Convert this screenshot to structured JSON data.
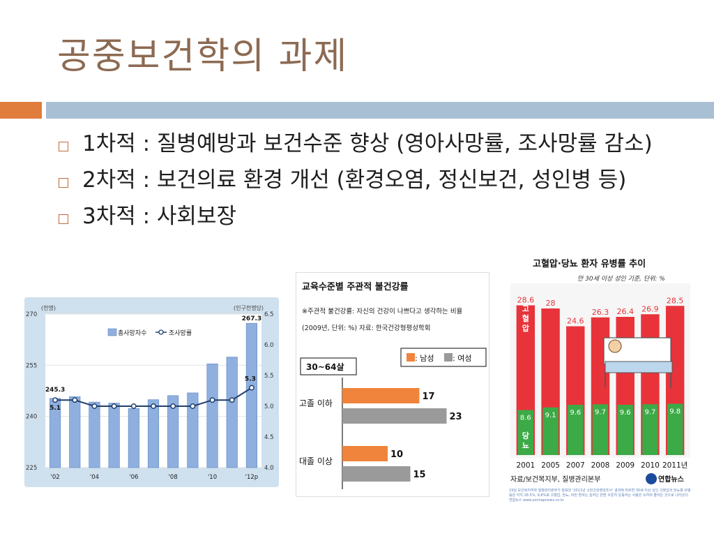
{
  "slide": {
    "title": "공중보건학의 과제",
    "bullets": [
      "1차적 : 질병예방과 보건수준 향상 (영아사망률, 조사망률 감소)",
      "2차적 : 보건의료 환경 개선 (환경오염, 정신보건, 성인병 등)",
      "3차적 : 사회보장"
    ]
  },
  "colors": {
    "title": "#8c6a52",
    "accent_orange": "#e07c3c",
    "accent_blue": "#a9bfd4"
  },
  "chart_data": [
    {
      "type": "bar",
      "left_unit": "(천명)",
      "right_unit": "(인구천명당)",
      "legend": [
        "총사망자수",
        "조사망률"
      ],
      "categories": [
        "'02",
        "'04",
        "'06",
        "'08",
        "'10",
        "'12p"
      ],
      "x": [
        2002,
        2003,
        2004,
        2005,
        2006,
        2007,
        2008,
        2009,
        2010,
        2011,
        2012
      ],
      "series": [
        {
          "name": "총사망자수",
          "values": [
            245.3,
            245.8,
            244.2,
            243.9,
            242.3,
            244.9,
            246.1,
            246.9,
            255.4,
            257.4,
            267.3
          ]
        },
        {
          "name": "조사망률",
          "values": [
            5.1,
            5.1,
            5.0,
            5.0,
            5.0,
            5.0,
            5.0,
            5.0,
            5.1,
            5.1,
            5.3
          ]
        }
      ],
      "ylim_left": [
        225,
        270
      ],
      "yticks_left": [
        "270",
        "255",
        "240",
        "225"
      ],
      "ylim_right": [
        4.0,
        6.5
      ],
      "yticks_right": [
        "6.5",
        "6.0",
        "5.5",
        "5.0",
        "4.5",
        "4.0"
      ],
      "data_labels": [
        "245.3",
        "5.1",
        "267.3",
        "5.3"
      ]
    },
    {
      "type": "bar",
      "title": "교육수준별 주관적 불건강률",
      "note": "※주관적 불건강률: 자신의 건강이 나쁘다고 생각하는 비율",
      "source": "(2009년, 단위: %) 자료: 한국건강형평성학회",
      "age_group": "30~64살",
      "legend": [
        ": 남성",
        ": 여성"
      ],
      "categories": [
        "고졸 이하",
        "대졸 이상"
      ],
      "series": [
        {
          "name": "남성",
          "values": [
            17,
            10
          ],
          "color": "#f0843c"
        },
        {
          "name": "여성",
          "values": [
            23,
            15
          ],
          "color": "#9a9a9a"
        }
      ]
    },
    {
      "type": "bar",
      "title": "고혈압·당뇨 환자 유병률 추이",
      "subtitle": "만 30세 이상 성인 기준, 단위: %",
      "categories": [
        "2001",
        "2005",
        "2007",
        "2008",
        "2009",
        "2010",
        "2011년"
      ],
      "series": [
        {
          "name": "고혈압",
          "values": [
            28.6,
            28.0,
            24.6,
            26.3,
            26.4,
            26.9,
            28.5
          ],
          "color": "#e8333a"
        },
        {
          "name": "당뇨",
          "values": [
            8.6,
            9.1,
            9.6,
            9.7,
            9.6,
            9.7,
            9.8
          ],
          "color": "#3caa46"
        }
      ],
      "source": "자료/보건복지부, 질병관리본부",
      "brand": "연합뉴스",
      "footnote": "19일 보건복지부와 질병관리본부가 발표한 '2011년 국민건강영양조사' 결과에 따르면 30세 이상 성인 고혈압과 당뇨병 유병률은 각각 28.5%, 9.8%로 고혈압, 당뇨, 비만 환자는 늘어난 반면 꾸준히 운동하는 사람은 오히려 줄어든 것으로 나타났다. 연합뉴스 www.yonhapnews.co.kr"
    }
  ]
}
